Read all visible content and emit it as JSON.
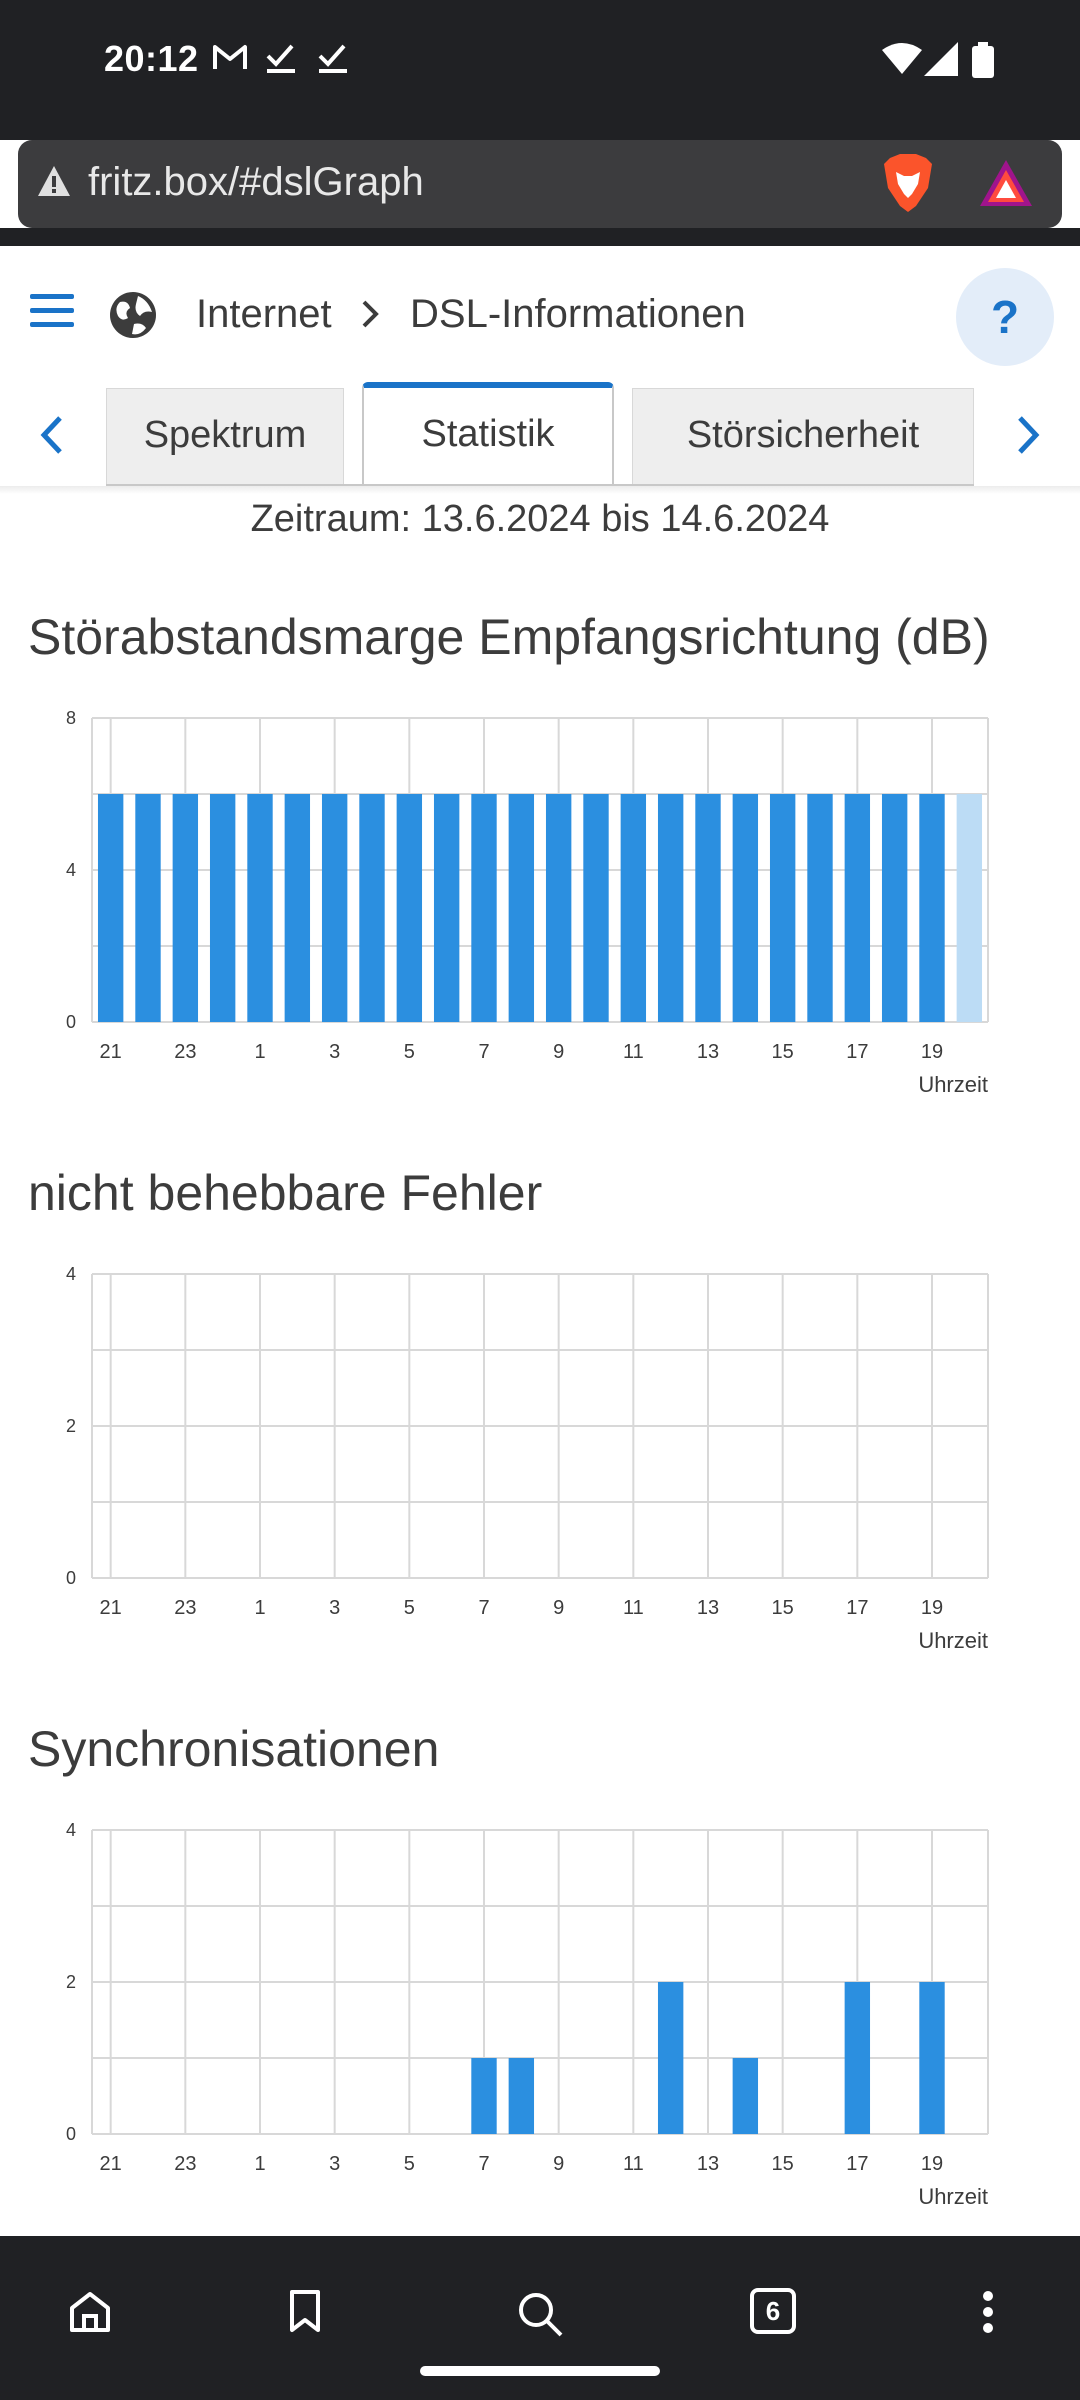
{
  "status": {
    "time": "20:12"
  },
  "browser": {
    "url": "fritz.box/#dslGraph",
    "tab_count": "6"
  },
  "header": {
    "crumbs": [
      "Internet",
      "DSL-Informationen"
    ],
    "help_label": "?"
  },
  "tabs": [
    {
      "label": "Spektrum",
      "active": false
    },
    {
      "label": "Statistik",
      "active": true
    },
    {
      "label": "Störsicherheit",
      "active": false
    }
  ],
  "period": "Zeitraum: 13.6.2024 bis 14.6.2024",
  "colors": {
    "bar": "#2b8fe0",
    "bar_light": "#bcdcf5",
    "grid": "#d8d8d8",
    "accent": "#1a73c8"
  },
  "chart_data": [
    {
      "type": "bar",
      "title": "Störabstandsmarge Empfangsrichtung (dB)",
      "xlabel": "Uhrzeit",
      "xticks": [
        "21",
        "23",
        "1",
        "3",
        "5",
        "7",
        "9",
        "11",
        "13",
        "15",
        "17",
        "19"
      ],
      "yticks": [
        "0",
        "4",
        "8"
      ],
      "ylim": [
        0,
        8
      ],
      "categories": [
        "21",
        "22",
        "23",
        "0",
        "1",
        "2",
        "3",
        "4",
        "5",
        "6",
        "7",
        "8",
        "9",
        "10",
        "11",
        "12",
        "13",
        "14",
        "15",
        "16",
        "17",
        "18",
        "19",
        "20"
      ],
      "values": [
        6,
        6,
        6,
        6,
        6,
        6,
        6,
        6,
        6,
        6,
        6,
        6,
        6,
        6,
        6,
        6,
        6,
        6,
        6,
        6,
        6,
        6,
        6,
        6
      ],
      "current_index": 23
    },
    {
      "type": "bar",
      "title": "nicht behebbare Fehler",
      "xlabel": "Uhrzeit",
      "xticks": [
        "21",
        "23",
        "1",
        "3",
        "5",
        "7",
        "9",
        "11",
        "13",
        "15",
        "17",
        "19"
      ],
      "yticks": [
        "0",
        "2",
        "4"
      ],
      "ylim": [
        0,
        4
      ],
      "categories": [
        "21",
        "22",
        "23",
        "0",
        "1",
        "2",
        "3",
        "4",
        "5",
        "6",
        "7",
        "8",
        "9",
        "10",
        "11",
        "12",
        "13",
        "14",
        "15",
        "16",
        "17",
        "18",
        "19",
        "20"
      ],
      "values": [
        0,
        0,
        0,
        0,
        0,
        0,
        0,
        0,
        0,
        0,
        0,
        0,
        0,
        0,
        0,
        0,
        0,
        0,
        0,
        0,
        0,
        0,
        0,
        0
      ]
    },
    {
      "type": "bar",
      "title": "Synchronisationen",
      "xlabel": "Uhrzeit",
      "xticks": [
        "21",
        "23",
        "1",
        "3",
        "5",
        "7",
        "9",
        "11",
        "13",
        "15",
        "17",
        "19"
      ],
      "yticks": [
        "0",
        "2",
        "4"
      ],
      "ylim": [
        0,
        4
      ],
      "categories": [
        "21",
        "22",
        "23",
        "0",
        "1",
        "2",
        "3",
        "4",
        "5",
        "6",
        "7",
        "8",
        "9",
        "10",
        "11",
        "12",
        "13",
        "14",
        "15",
        "16",
        "17",
        "18",
        "19",
        "20"
      ],
      "values": [
        0,
        0,
        0,
        0,
        0,
        0,
        0,
        0,
        0,
        0,
        1,
        1,
        0,
        0,
        0,
        2,
        0,
        1,
        0,
        0,
        2,
        0,
        2,
        0
      ]
    }
  ]
}
